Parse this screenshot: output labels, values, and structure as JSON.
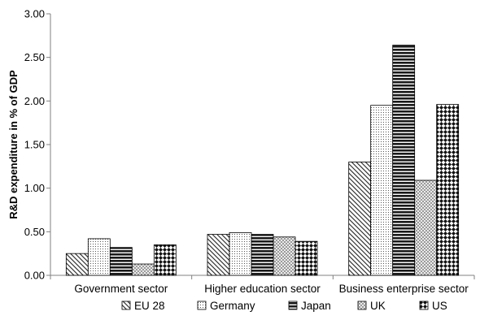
{
  "chart_data": {
    "type": "bar",
    "ylabel": "R&D expenditure in % of GDP",
    "ylim": [
      0,
      3.0
    ],
    "yticks": [
      "0.00",
      "0.50",
      "1.00",
      "1.50",
      "2.00",
      "2.50",
      "3.00"
    ],
    "grid": false,
    "legend_position": "bottom",
    "categories": [
      "Government sector",
      "Higher education sector",
      "Business enterprise sector"
    ],
    "series": [
      {
        "name": "EU 28",
        "values": [
          0.25,
          0.47,
          1.3
        ],
        "pattern": "diag-dense"
      },
      {
        "name": "Germany",
        "values": [
          0.42,
          0.49,
          1.95
        ],
        "pattern": "dots-light"
      },
      {
        "name": "Japan",
        "values": [
          0.32,
          0.47,
          2.64
        ],
        "pattern": "horizontal-dark"
      },
      {
        "name": "UK",
        "values": [
          0.13,
          0.44,
          1.09
        ],
        "pattern": "crosshatch-light"
      },
      {
        "name": "US",
        "values": [
          0.35,
          0.39,
          1.96
        ],
        "pattern": "diamond-check"
      }
    ]
  }
}
